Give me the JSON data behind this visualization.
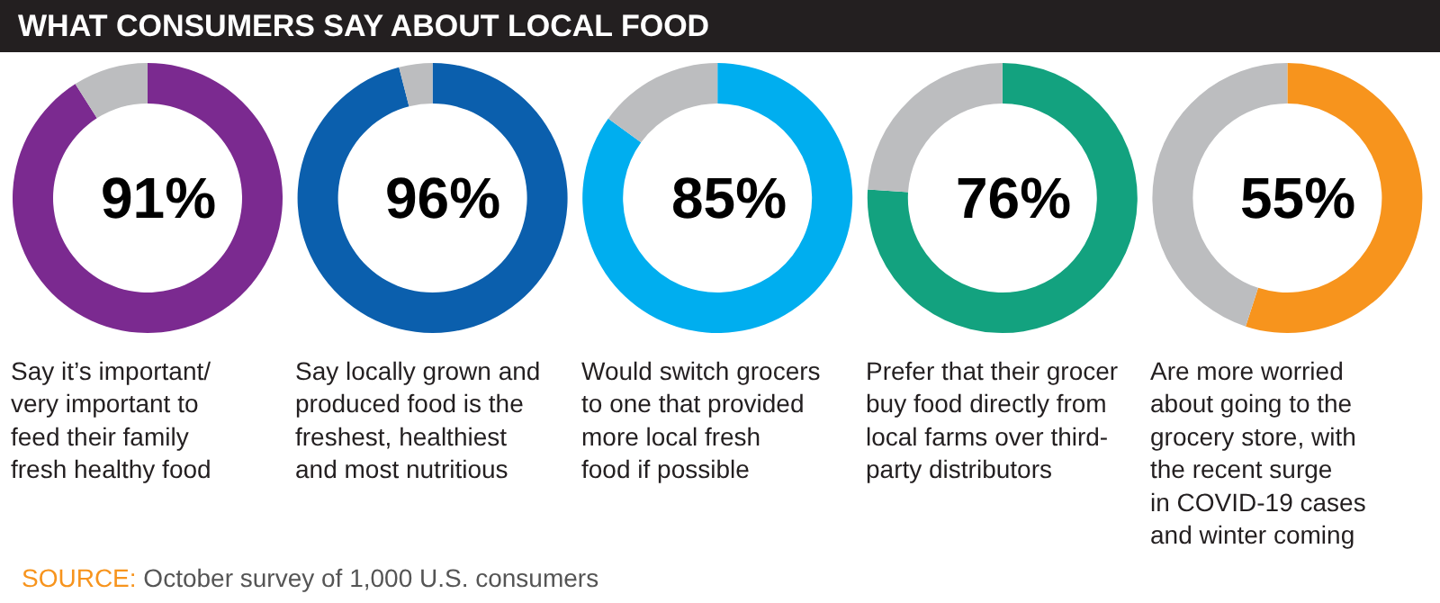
{
  "chart_data": [
    {
      "type": "donut",
      "title": "WHAT CONSUMERS SAY ABOUT LOCAL FOOD",
      "categories": [
        null,
        null
      ],
      "values": [
        91,
        9
      ],
      "colors": [
        "#7b2a90",
        "#bcbdbf"
      ],
      "value_labels": [
        "91%",
        null
      ],
      "annotations": [
        "Say it’s important/\nvery important to\nfeed their family\nfresh healthy food"
      ]
    },
    {
      "type": "donut",
      "categories": [
        null,
        null
      ],
      "values": [
        96,
        4
      ],
      "colors": [
        "#0b5fad",
        "#bcbdbf"
      ],
      "value_labels": [
        "96%",
        null
      ],
      "annotations": [
        "Say locally grown and\nproduced food is the\nfreshest, healthiest\nand most nutritious"
      ]
    },
    {
      "type": "donut",
      "categories": [
        null,
        null
      ],
      "values": [
        85,
        15
      ],
      "colors": [
        "#00aeef",
        "#bcbdbf"
      ],
      "value_labels": [
        "85%",
        null
      ],
      "annotations": [
        "Would switch grocers\nto one that provided\nmore local fresh\nfood if possible"
      ]
    },
    {
      "type": "donut",
      "categories": [
        null,
        null
      ],
      "values": [
        76,
        24
      ],
      "colors": [
        "#13a27f",
        "#bcbdbf"
      ],
      "value_labels": [
        "76%",
        null
      ],
      "annotations": [
        "Prefer that their grocer\nbuy food directly from\nlocal farms over third-\nparty distributors"
      ]
    },
    {
      "type": "donut",
      "categories": [
        null,
        null
      ],
      "values": [
        55,
        45
      ],
      "colors": [
        "#f7941d",
        "#bcbdbf"
      ],
      "value_labels": [
        "55%",
        null
      ],
      "annotations": [
        "Are more worried\nabout going to the\ngrocery store, with\nthe recent surge\nin COVID-19 cases\nand winter coming",
        "SOURCE: October survey of 1,000 U.S. consumers"
      ]
    }
  ]
}
